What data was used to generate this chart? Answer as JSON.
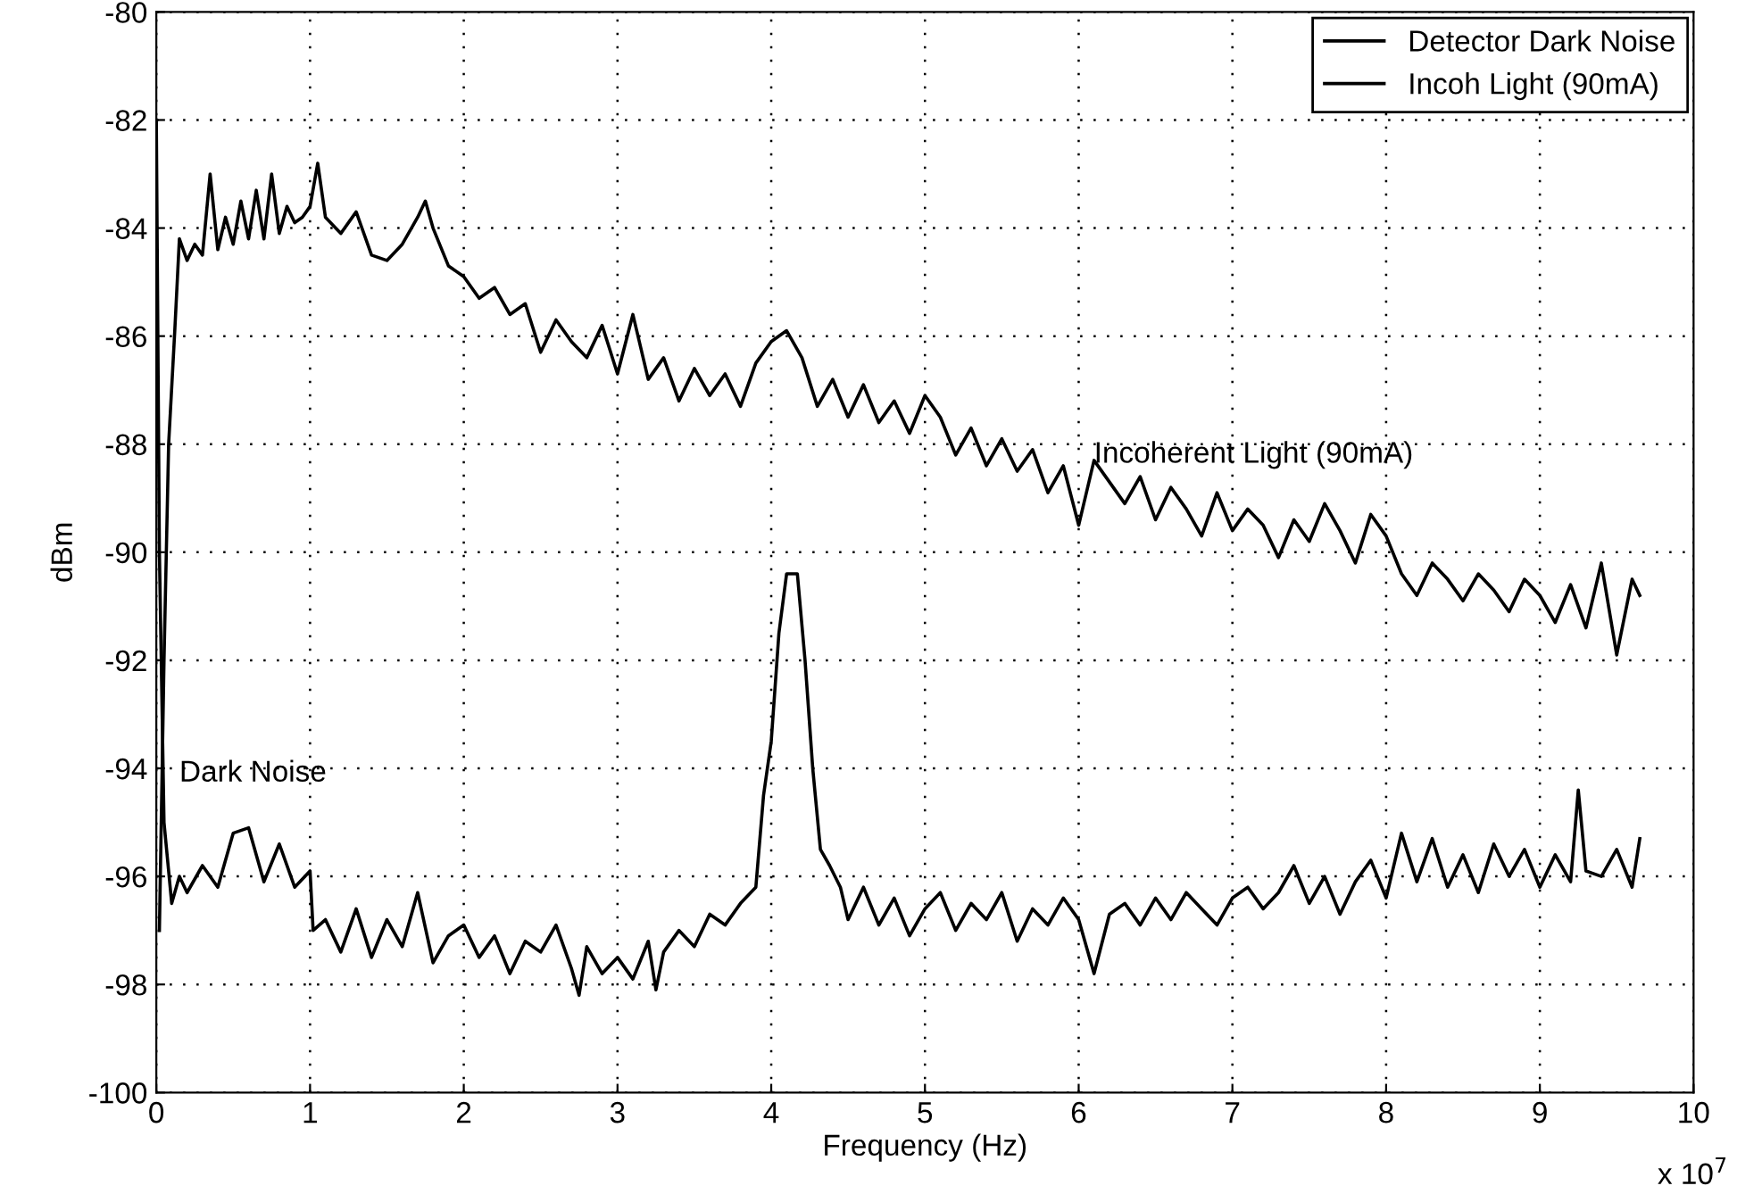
{
  "chart_data": {
    "type": "line",
    "xlabel": "Frequency (Hz)",
    "ylabel": "dBm",
    "xlim": [
      0,
      10
    ],
    "ylim": [
      -100,
      -80
    ],
    "xticks": [
      0,
      1,
      2,
      3,
      4,
      5,
      6,
      7,
      8,
      9,
      10
    ],
    "yticks": [
      -100,
      -98,
      -96,
      -94,
      -92,
      -90,
      -88,
      -86,
      -84,
      -82,
      -80
    ],
    "grid": true,
    "legend": "top right",
    "line_style": "solid",
    "marker": "none",
    "series": [
      {
        "name": "Detector Dark Noise",
        "color": "#000000",
        "x": [
          0,
          0.02,
          0.05,
          0.1,
          0.15,
          0.2,
          0.3,
          0.4,
          0.5,
          0.6,
          0.7,
          0.8,
          0.9,
          1.0,
          1.02,
          1.1,
          1.2,
          1.3,
          1.4,
          1.5,
          1.6,
          1.7,
          1.8,
          1.9,
          2.0,
          2.1,
          2.2,
          2.3,
          2.4,
          2.5,
          2.6,
          2.7,
          2.75,
          2.8,
          2.9,
          3.0,
          3.1,
          3.2,
          3.25,
          3.3,
          3.4,
          3.5,
          3.6,
          3.7,
          3.8,
          3.9,
          3.95,
          4.0,
          4.05,
          4.1,
          4.17,
          4.22,
          4.27,
          4.32,
          4.38,
          4.45,
          4.5,
          4.6,
          4.7,
          4.8,
          4.9,
          5.0,
          5.1,
          5.2,
          5.3,
          5.4,
          5.5,
          5.6,
          5.7,
          5.8,
          5.9,
          6.0,
          6.1,
          6.2,
          6.3,
          6.4,
          6.5,
          6.6,
          6.7,
          6.8,
          6.9,
          7.0,
          7.1,
          7.2,
          7.3,
          7.4,
          7.5,
          7.6,
          7.7,
          7.8,
          7.9,
          8.0,
          8.1,
          8.2,
          8.3,
          8.4,
          8.5,
          8.6,
          8.7,
          8.8,
          8.9,
          9.0,
          9.1,
          9.2,
          9.25,
          9.3,
          9.4,
          9.5,
          9.6,
          9.65
        ],
        "values": [
          -82,
          -90,
          -95,
          -96.5,
          -96,
          -96.3,
          -95.8,
          -96.2,
          -95.2,
          -95.1,
          -96.1,
          -95.4,
          -96.2,
          -95.9,
          -97,
          -96.8,
          -97.4,
          -96.6,
          -97.5,
          -96.8,
          -97.3,
          -96.3,
          -97.6,
          -97.1,
          -96.9,
          -97.5,
          -97.1,
          -97.8,
          -97.2,
          -97.4,
          -96.9,
          -97.7,
          -98.2,
          -97.3,
          -97.8,
          -97.5,
          -97.9,
          -97.2,
          -98.1,
          -97.4,
          -97,
          -97.3,
          -96.7,
          -96.9,
          -96.5,
          -96.2,
          -94.5,
          -93.5,
          -91.5,
          -90.4,
          -90.4,
          -92,
          -94,
          -95.5,
          -95.8,
          -96.2,
          -96.8,
          -96.2,
          -96.9,
          -96.4,
          -97.1,
          -96.6,
          -96.3,
          -97,
          -96.5,
          -96.8,
          -96.3,
          -97.2,
          -96.6,
          -96.9,
          -96.4,
          -96.8,
          -97.8,
          -96.7,
          -96.5,
          -96.9,
          -96.4,
          -96.8,
          -96.3,
          -96.6,
          -96.9,
          -96.4,
          -96.2,
          -96.6,
          -96.3,
          -95.8,
          -96.5,
          -96,
          -96.7,
          -96.1,
          -95.7,
          -96.4,
          -95.2,
          -96.1,
          -95.3,
          -96.2,
          -95.6,
          -96.3,
          -95.4,
          -96,
          -95.5,
          -96.2,
          -95.6,
          -96.1,
          -94.4,
          -95.9,
          -96,
          -95.5,
          -96.2,
          -95.3
        ]
      },
      {
        "name": "Incoh Light (90mA)",
        "color": "#000000",
        "x": [
          0.02,
          0.05,
          0.08,
          0.12,
          0.15,
          0.2,
          0.25,
          0.3,
          0.35,
          0.4,
          0.45,
          0.5,
          0.55,
          0.6,
          0.65,
          0.7,
          0.75,
          0.8,
          0.85,
          0.9,
          0.95,
          1.0,
          1.05,
          1.1,
          1.2,
          1.3,
          1.4,
          1.5,
          1.6,
          1.7,
          1.75,
          1.8,
          1.9,
          2.0,
          2.1,
          2.2,
          2.3,
          2.4,
          2.5,
          2.6,
          2.7,
          2.8,
          2.9,
          3.0,
          3.1,
          3.2,
          3.3,
          3.4,
          3.5,
          3.6,
          3.7,
          3.8,
          3.9,
          4.0,
          4.1,
          4.2,
          4.3,
          4.4,
          4.5,
          4.6,
          4.7,
          4.8,
          4.9,
          5.0,
          5.1,
          5.2,
          5.3,
          5.4,
          5.5,
          5.6,
          5.7,
          5.8,
          5.9,
          6.0,
          6.1,
          6.2,
          6.3,
          6.4,
          6.5,
          6.6,
          6.7,
          6.8,
          6.9,
          7.0,
          7.1,
          7.2,
          7.3,
          7.4,
          7.5,
          7.6,
          7.7,
          7.8,
          7.9,
          8.0,
          8.1,
          8.2,
          8.3,
          8.4,
          8.5,
          8.6,
          8.7,
          8.8,
          8.9,
          9.0,
          9.1,
          9.2,
          9.3,
          9.4,
          9.5,
          9.6,
          9.65
        ],
        "values": [
          -97,
          -92,
          -88,
          -85.9,
          -84.2,
          -84.6,
          -84.3,
          -84.5,
          -83,
          -84.4,
          -83.8,
          -84.3,
          -83.5,
          -84.2,
          -83.3,
          -84.2,
          -83,
          -84.1,
          -83.6,
          -83.9,
          -83.8,
          -83.6,
          -82.8,
          -83.8,
          -84.1,
          -83.7,
          -84.5,
          -84.6,
          -84.3,
          -83.8,
          -83.5,
          -84,
          -84.7,
          -84.9,
          -85.3,
          -85.1,
          -85.6,
          -85.4,
          -86.3,
          -85.7,
          -86.1,
          -86.4,
          -85.8,
          -86.7,
          -85.6,
          -86.8,
          -86.4,
          -87.2,
          -86.6,
          -87.1,
          -86.7,
          -87.3,
          -86.5,
          -86.1,
          -85.9,
          -86.4,
          -87.3,
          -86.8,
          -87.5,
          -86.9,
          -87.6,
          -87.2,
          -87.8,
          -87.1,
          -87.5,
          -88.2,
          -87.7,
          -88.4,
          -87.9,
          -88.5,
          -88.1,
          -88.9,
          -88.4,
          -89.5,
          -88.3,
          -88.7,
          -89.1,
          -88.6,
          -89.4,
          -88.8,
          -89.2,
          -89.7,
          -88.9,
          -89.6,
          -89.2,
          -89.5,
          -90.1,
          -89.4,
          -89.8,
          -89.1,
          -89.6,
          -90.2,
          -89.3,
          -89.7,
          -90.4,
          -90.8,
          -90.2,
          -90.5,
          -90.9,
          -90.4,
          -90.7,
          -91.1,
          -90.5,
          -90.8,
          -91.3,
          -90.6,
          -91.4,
          -90.2,
          -91.9,
          -90.5,
          -90.8
        ]
      }
    ],
    "annotations": [
      "Incoherent Light (90mA)",
      "Dark Noise",
      "x 10$^{7}$"
    ]
  }
}
